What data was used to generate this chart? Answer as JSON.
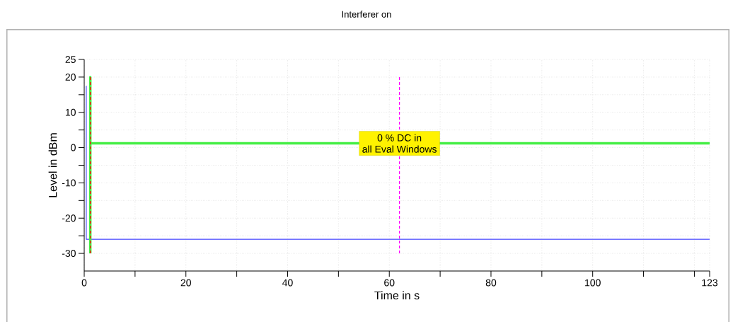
{
  "chart_data": {
    "type": "line",
    "title": "Interferer on",
    "xlabel": "Time in s",
    "ylabel": "Level in dBm",
    "xlim": [
      0,
      123
    ],
    "ylim": [
      -35,
      25
    ],
    "xticks": [
      0,
      {
        "value": 10,
        "label": null
      },
      20,
      {
        "value": 30,
        "label": null
      },
      40,
      {
        "value": 50,
        "label": null
      },
      60,
      {
        "value": 70,
        "label": null
      },
      80,
      {
        "value": 90,
        "label": null
      },
      100,
      {
        "value": 110,
        "label": null
      },
      {
        "value": 120,
        "label": null
      },
      123
    ],
    "yticks": [
      -30,
      {
        "value": -25,
        "label": null
      },
      -20,
      {
        "value": -15,
        "label": null
      },
      -10,
      {
        "value": -5,
        "label": null
      },
      0,
      {
        "value": 5,
        "label": null
      },
      10,
      {
        "value": 15,
        "label": null
      },
      20,
      25
    ],
    "grid": true,
    "marker": "none",
    "series": [
      {
        "color": "#4444ff",
        "x": [
          0.4,
          0.4,
          123
        ],
        "values": [
          17.5,
          -26,
          -26
        ],
        "line_style": "solid"
      },
      {
        "color": "#44ee44",
        "x": [
          1.2,
          1.2,
          1.2,
          123
        ],
        "values": [
          -30,
          20,
          1.2,
          1.2
        ],
        "line_style": "solid"
      },
      {
        "color": "#ff0000",
        "x": [
          1.2,
          1.2
        ],
        "values": [
          -30,
          20
        ],
        "line_style": "dashed"
      },
      {
        "color": "#ff00ff",
        "x": [
          62,
          62
        ],
        "values": [
          -30,
          20
        ],
        "line_style": "dashed"
      }
    ],
    "annotations": [
      "0 % DC in",
      "all Eval Windows"
    ]
  }
}
